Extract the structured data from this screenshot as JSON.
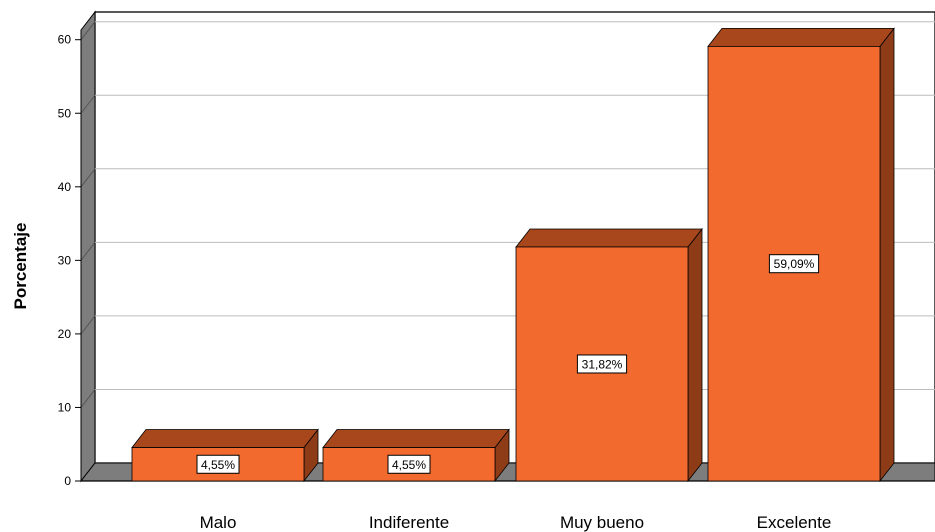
{
  "chart_data": {
    "type": "bar",
    "categories": [
      "Malo",
      "Indiferente",
      "Muy bueno",
      "Excelente"
    ],
    "values": [
      4.55,
      4.55,
      31.82,
      59.09
    ],
    "data_labels": [
      "4,55%",
      "4,55%",
      "31,82%",
      "59,09%"
    ],
    "title": "",
    "xlabel": "",
    "ylabel": "Porcentaje",
    "ylim": [
      0,
      63
    ],
    "yticks": [
      "0",
      "10",
      "20",
      "30",
      "40",
      "50",
      "60"
    ],
    "grid": true,
    "legend": "none",
    "colors": {
      "bar_front": "#f26a2e",
      "bar_top": "#a8461c",
      "bar_side": "#8e3b17",
      "wall": "#7d7d7d",
      "floor": "#7d7d7d",
      "grid": "#bdbdbd"
    }
  }
}
